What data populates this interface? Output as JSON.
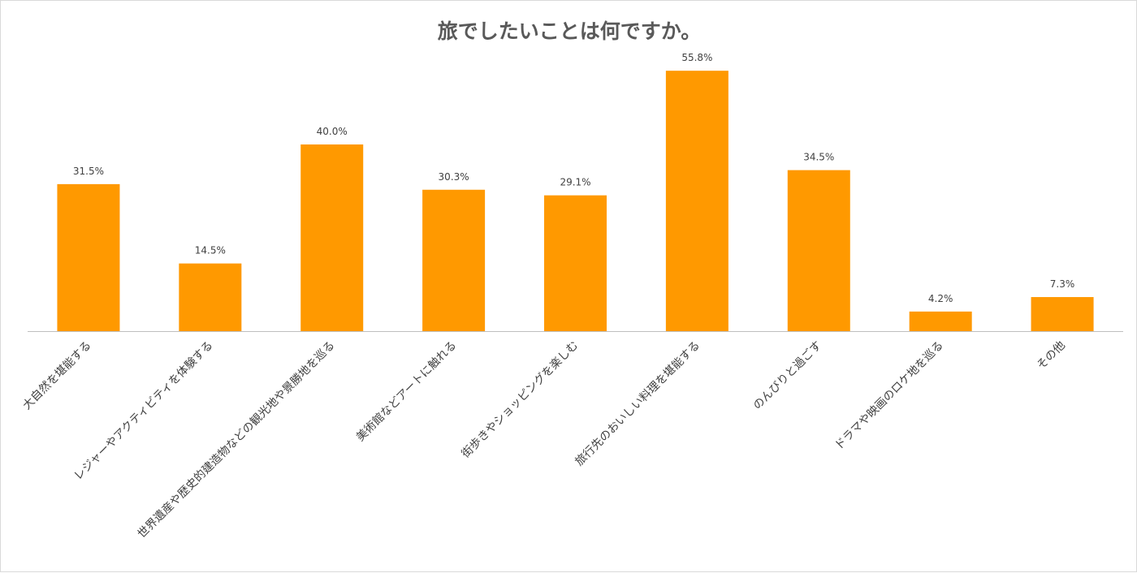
{
  "chart_data": {
    "type": "bar",
    "title": "旅でしたいことは何ですか。",
    "categories": [
      "大自然を堪能する",
      "レジャーやアクティビティを体験する",
      "世界遺産や歴史的建造物などの観光地や景勝地を巡る",
      "美術館などアートに触れる",
      "街歩きやショッピングを楽しむ",
      "旅行先のおいしい料理を堪能する",
      "のんびりと過ごす",
      "ドラマや映画のロケ地を巡る",
      "その他"
    ],
    "values": [
      31.5,
      14.5,
      40.0,
      30.3,
      29.1,
      55.8,
      34.5,
      4.2,
      7.3
    ],
    "data_labels": [
      "31.5%",
      "14.5%",
      "40.0%",
      "30.3%",
      "29.1%",
      "55.8%",
      "34.5%",
      "4.2%",
      "7.3%"
    ],
    "ylim": [
      0,
      60
    ],
    "grid": false,
    "legend": "none",
    "bar_color": "#ff9900"
  }
}
